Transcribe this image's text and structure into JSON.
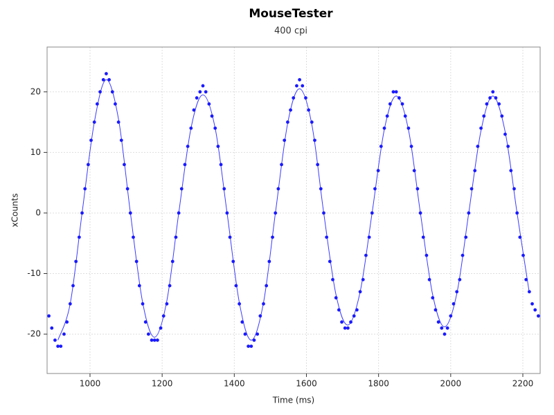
{
  "chart_data": {
    "type": "scatter",
    "title": "MouseTester",
    "subtitle": "400 cpi",
    "x_label": "Time (ms)",
    "y_label": "xCounts",
    "xlim": [
      881,
      2248
    ],
    "ylim": [
      -26.5,
      27.4
    ],
    "xticks": [
      1000,
      1200,
      1400,
      1600,
      1800,
      2000,
      2200
    ],
    "yticks": [
      -20,
      -10,
      0,
      10,
      20
    ],
    "grid": true,
    "series": [
      {
        "type": "scatter",
        "color": "#1a1aff",
        "x": [
          886,
          894,
          903,
          911,
          919,
          928,
          936,
          945,
          953,
          961,
          970,
          978,
          986,
          995,
          1003,
          1012,
          1020,
          1028,
          1037,
          1045,
          1053,
          1062,
          1070,
          1079,
          1087,
          1095,
          1104,
          1112,
          1120,
          1129,
          1137,
          1146,
          1154,
          1162,
          1171,
          1179,
          1187,
          1196,
          1204,
          1213,
          1221,
          1229,
          1238,
          1246,
          1254,
          1263,
          1271,
          1280,
          1288,
          1296,
          1305,
          1313,
          1321,
          1330,
          1338,
          1347,
          1355,
          1363,
          1372,
          1380,
          1388,
          1397,
          1405,
          1414,
          1422,
          1430,
          1439,
          1447,
          1455,
          1464,
          1472,
          1481,
          1489,
          1497,
          1506,
          1514,
          1522,
          1531,
          1539,
          1548,
          1556,
          1564,
          1573,
          1581,
          1589,
          1598,
          1606,
          1615,
          1623,
          1631,
          1640,
          1648,
          1656,
          1665,
          1673,
          1682,
          1690,
          1698,
          1707,
          1715,
          1723,
          1732,
          1740,
          1749,
          1757,
          1765,
          1774,
          1782,
          1790,
          1799,
          1807,
          1816,
          1824,
          1832,
          1841,
          1849,
          1857,
          1866,
          1874,
          1883,
          1891,
          1899,
          1908,
          1916,
          1924,
          1933,
          1941,
          1950,
          1958,
          1966,
          1975,
          1983,
          1991,
          2000,
          2008,
          2017,
          2025,
          2033,
          2042,
          2050,
          2058,
          2067,
          2075,
          2084,
          2092,
          2100,
          2109,
          2117,
          2125,
          2134,
          2142,
          2151,
          2159,
          2167,
          2176,
          2184,
          2192,
          2201,
          2209,
          2218,
          2226,
          2234,
          2243
        ],
        "values": [
          -17,
          -19,
          -21,
          -22,
          -22,
          -20,
          -18,
          -15,
          -12,
          -8,
          -4,
          0,
          4,
          8,
          12,
          15,
          18,
          20,
          22,
          23,
          22,
          20,
          18,
          15,
          12,
          8,
          4,
          0,
          -4,
          -8,
          -12,
          -15,
          -18,
          -20,
          -21,
          -21,
          -21,
          -19,
          -17,
          -15,
          -12,
          -8,
          -4,
          0,
          4,
          8,
          11,
          14,
          17,
          19,
          20,
          21,
          20,
          18,
          16,
          14,
          11,
          8,
          4,
          0,
          -4,
          -8,
          -12,
          -15,
          -18,
          -20,
          -22,
          -22,
          -21,
          -20,
          -17,
          -15,
          -12,
          -8,
          -4,
          0,
          4,
          8,
          12,
          15,
          17,
          19,
          21,
          22,
          21,
          19,
          17,
          15,
          12,
          8,
          4,
          0,
          -4,
          -8,
          -11,
          -14,
          -16,
          -18,
          -19,
          -19,
          -18,
          -17,
          -16,
          -13,
          -11,
          -7,
          -4,
          0,
          4,
          7,
          11,
          14,
          16,
          18,
          20,
          20,
          19,
          18,
          16,
          14,
          11,
          7,
          4,
          0,
          -4,
          -7,
          -11,
          -14,
          -16,
          -18,
          -19,
          -20,
          -19,
          -17,
          -15,
          -13,
          -11,
          -7,
          -4,
          0,
          4,
          7,
          11,
          14,
          16,
          18,
          19,
          20,
          19,
          18,
          16,
          13,
          11,
          7,
          4,
          0,
          -4,
          -7,
          -11,
          -13,
          -15,
          -16,
          -17
        ]
      },
      {
        "type": "line",
        "color": "#3a3aff",
        "x": [
          911,
          945,
          978,
          1012,
          1045,
          1079,
          1112,
          1146,
          1179,
          1213,
          1246,
          1280,
          1313,
          1347,
          1380,
          1414,
          1447,
          1481,
          1514,
          1548,
          1581,
          1615,
          1648,
          1682,
          1715,
          1749,
          1782,
          1816,
          1849,
          1883,
          1916,
          1950,
          1983,
          2017,
          2050,
          2084,
          2117,
          2151,
          2184,
          2218
        ],
        "values": [
          -21,
          -15,
          0,
          15,
          22,
          15.5,
          0,
          -14.8,
          -20.5,
          -14.5,
          0,
          14,
          19.5,
          14,
          0,
          -14.8,
          -21,
          -14.8,
          0,
          14.8,
          20.5,
          14.6,
          0,
          -13.5,
          -18.5,
          -13,
          0,
          13.8,
          19.3,
          13.7,
          0,
          -13.5,
          -18.8,
          -13.3,
          0,
          13.6,
          19.3,
          13.4,
          0,
          -13.2
        ]
      }
    ]
  }
}
